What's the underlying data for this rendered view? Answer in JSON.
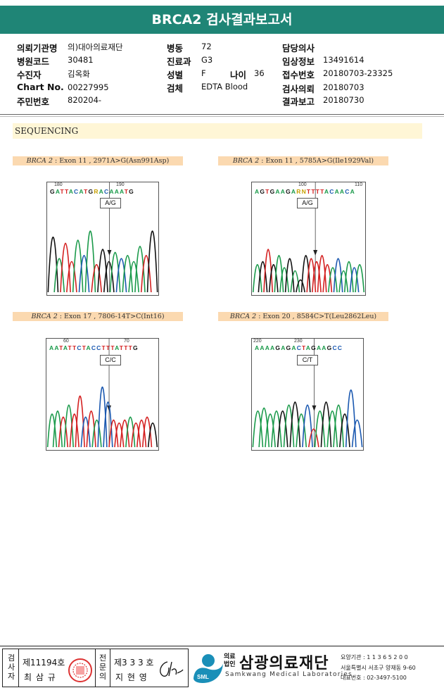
{
  "report": {
    "title": "BRCA2 검사결과보고서"
  },
  "patient": {
    "left": [
      {
        "label": "의뢰기관명",
        "value": "의)대아의료재단"
      },
      {
        "label": "병원코드",
        "value": "30481"
      },
      {
        "label": "수진자",
        "value": "김옥화"
      },
      {
        "label": "Chart No.",
        "value": "00227995"
      },
      {
        "label": "주민번호",
        "value": "820204-"
      }
    ],
    "mid": [
      {
        "label": "병동",
        "value": "72"
      },
      {
        "label": "진료과",
        "value": "G3"
      },
      {
        "label": "성별",
        "value": "F"
      },
      {
        "label": "검체",
        "value": "EDTA Blood"
      }
    ],
    "age": {
      "label": "나이",
      "value": "36"
    },
    "right": [
      {
        "label": "담당의사",
        "value": ""
      },
      {
        "label": "임상정보",
        "value": "13491614"
      },
      {
        "label": "접수번호",
        "value": "20180703-23325"
      },
      {
        "label": "검사의뢰",
        "value": "20180703"
      },
      {
        "label": "결과보고",
        "value": "20180730"
      }
    ]
  },
  "section": {
    "title": "SEQUENCING"
  },
  "panels": [
    {
      "gene": "BRCA 2",
      "label": " : Exon 11 , 2971A>G(Asn991Asp)",
      "sequence": "GATTACATGRACAAATG",
      "pos1": "180",
      "pos2": "190",
      "call": "A/G",
      "colors": {
        "A": "#1a9a4a",
        "C": "#1a58b0",
        "G": "#111111",
        "T": "#d42020"
      }
    },
    {
      "gene": "BRCA 2",
      "label": " : Exon 11 , 5785A>G(Ile1929Val)",
      "sequence": "AGTGAAGARNTTTTACAACA",
      "pos1": "100",
      "pos2": "110",
      "call": "A/G"
    },
    {
      "gene": "BRCA 2",
      "label": " : Exon 17 , 7806-14T>C(Int16)",
      "sequence": "AATATTCTACCTTTATTTG",
      "pos1": "60",
      "pos2": "70",
      "call": "C/C"
    },
    {
      "gene": "BRCA 2",
      "label": " : Exon 20 , 8584C>T(Leu2862Leu)",
      "sequence": "AAAAGAGACTAGAAGCC",
      "pos1": "220",
      "pos2": "230",
      "call": "C/T"
    }
  ],
  "footer": {
    "examiner_label": "검사자",
    "examiner_no": "제11194호",
    "examiner_name": "최 삼 규",
    "specialist_label": "전문의",
    "specialist_no": "제3 3 3 호",
    "specialist_name": "지 현 영",
    "company_prefix": "의료\n법인",
    "company_name": "삼광의료재단",
    "company_en": "Samkwang Medical Laboratories",
    "logo_text": "SML",
    "info1": "요양기관 : 1 1 3 6 5 2 0 0",
    "info2": "서울특별시 서초구 양재동 9-60",
    "info3": "대표번호 : 02-3497-5100"
  }
}
